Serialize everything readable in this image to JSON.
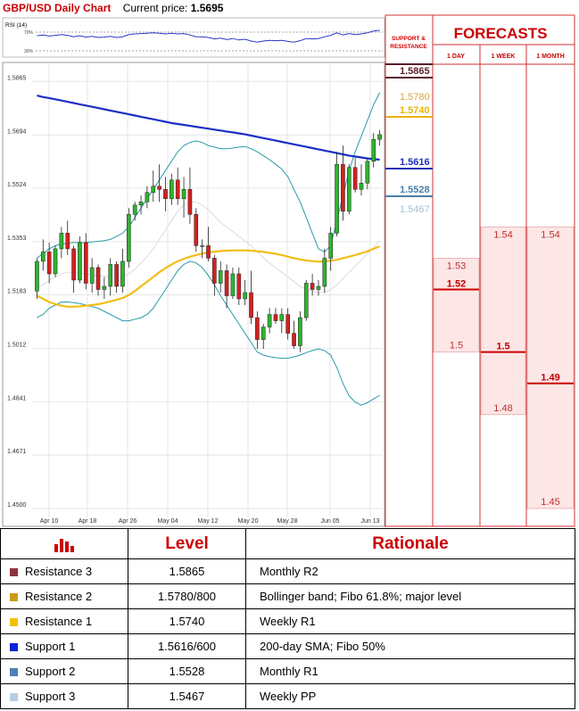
{
  "header": {
    "title": "GBP/USD Daily Chart",
    "price_label": "Current price:",
    "price_value": "1.5695"
  },
  "rsi_label": "RSI (14)",
  "rsi_levels": [
    "70%",
    "30%"
  ],
  "panel": {
    "sr_title_1": "SUPPORT &",
    "sr_title_2": "RESISTANCE",
    "forecasts_title": "FORECASTS",
    "col_1day": "1 DAY",
    "col_1week": "1 WEEK",
    "col_1month": "1 MONTH"
  },
  "colors": {
    "up": "#2db52d",
    "down": "#d42020",
    "sma200": "#1b2fc4",
    "sma_short": "#f2be16",
    "bands": "#2a9aaa",
    "forecast_fill": "#fde6e6",
    "forecast_line": "#cc0000"
  },
  "chart_data": [
    {
      "type": "candlestick",
      "title": "GBP/USD Daily Chart",
      "ylim": [
        1.446,
        1.592
      ],
      "y_ticks": [
        "1.5865",
        "1.5694",
        "1.5524",
        "1.5353",
        "1.5183",
        "1.5012",
        "1.4841",
        "1.4671",
        "1.4500"
      ],
      "x_ticks": [
        "Apr 10",
        "Apr 18",
        "Apr 26",
        "May 04",
        "May 12",
        "May 20",
        "May 28",
        "Jun 05",
        "Jun 13"
      ],
      "candles": [
        {
          "o": 1.5195,
          "h": 1.53,
          "l": 1.517,
          "c": 1.529
        },
        {
          "o": 1.529,
          "h": 1.536,
          "l": 1.526,
          "c": 1.532
        },
        {
          "o": 1.532,
          "h": 1.535,
          "l": 1.522,
          "c": 1.525
        },
        {
          "o": 1.525,
          "h": 1.534,
          "l": 1.524,
          "c": 1.533
        },
        {
          "o": 1.533,
          "h": 1.54,
          "l": 1.53,
          "c": 1.538
        },
        {
          "o": 1.538,
          "h": 1.542,
          "l": 1.531,
          "c": 1.533
        },
        {
          "o": 1.533,
          "h": 1.534,
          "l": 1.519,
          "c": 1.523
        },
        {
          "o": 1.523,
          "h": 1.537,
          "l": 1.522,
          "c": 1.535
        },
        {
          "o": 1.535,
          "h": 1.538,
          "l": 1.52,
          "c": 1.522
        },
        {
          "o": 1.522,
          "h": 1.53,
          "l": 1.519,
          "c": 1.527
        },
        {
          "o": 1.527,
          "h": 1.528,
          "l": 1.518,
          "c": 1.52
        },
        {
          "o": 1.52,
          "h": 1.524,
          "l": 1.517,
          "c": 1.521
        },
        {
          "o": 1.521,
          "h": 1.53,
          "l": 1.518,
          "c": 1.528
        },
        {
          "o": 1.528,
          "h": 1.529,
          "l": 1.519,
          "c": 1.521
        },
        {
          "o": 1.521,
          "h": 1.533,
          "l": 1.519,
          "c": 1.529
        },
        {
          "o": 1.529,
          "h": 1.546,
          "l": 1.527,
          "c": 1.544
        },
        {
          "o": 1.544,
          "h": 1.548,
          "l": 1.542,
          "c": 1.547
        },
        {
          "o": 1.547,
          "h": 1.55,
          "l": 1.544,
          "c": 1.548
        },
        {
          "o": 1.548,
          "h": 1.553,
          "l": 1.546,
          "c": 1.551
        },
        {
          "o": 1.551,
          "h": 1.558,
          "l": 1.548,
          "c": 1.553
        },
        {
          "o": 1.553,
          "h": 1.56,
          "l": 1.548,
          "c": 1.552
        },
        {
          "o": 1.552,
          "h": 1.556,
          "l": 1.545,
          "c": 1.549
        },
        {
          "o": 1.549,
          "h": 1.557,
          "l": 1.547,
          "c": 1.555
        },
        {
          "o": 1.555,
          "h": 1.559,
          "l": 1.547,
          "c": 1.549
        },
        {
          "o": 1.549,
          "h": 1.556,
          "l": 1.543,
          "c": 1.552
        },
        {
          "o": 1.552,
          "h": 1.559,
          "l": 1.541,
          "c": 1.544
        },
        {
          "o": 1.544,
          "h": 1.546,
          "l": 1.532,
          "c": 1.534
        },
        {
          "o": 1.534,
          "h": 1.536,
          "l": 1.53,
          "c": 1.534
        },
        {
          "o": 1.534,
          "h": 1.54,
          "l": 1.529,
          "c": 1.53
        },
        {
          "o": 1.53,
          "h": 1.531,
          "l": 1.518,
          "c": 1.522
        },
        {
          "o": 1.522,
          "h": 1.529,
          "l": 1.519,
          "c": 1.526
        },
        {
          "o": 1.526,
          "h": 1.528,
          "l": 1.514,
          "c": 1.518
        },
        {
          "o": 1.518,
          "h": 1.527,
          "l": 1.517,
          "c": 1.525
        },
        {
          "o": 1.525,
          "h": 1.527,
          "l": 1.515,
          "c": 1.517
        },
        {
          "o": 1.517,
          "h": 1.523,
          "l": 1.515,
          "c": 1.519
        },
        {
          "o": 1.519,
          "h": 1.526,
          "l": 1.509,
          "c": 1.511
        },
        {
          "o": 1.511,
          "h": 1.513,
          "l": 1.501,
          "c": 1.504
        },
        {
          "o": 1.504,
          "h": 1.509,
          "l": 1.501,
          "c": 1.508
        },
        {
          "o": 1.508,
          "h": 1.514,
          "l": 1.506,
          "c": 1.512
        },
        {
          "o": 1.512,
          "h": 1.514,
          "l": 1.509,
          "c": 1.51
        },
        {
          "o": 1.51,
          "h": 1.514,
          "l": 1.506,
          "c": 1.512
        },
        {
          "o": 1.512,
          "h": 1.514,
          "l": 1.504,
          "c": 1.506
        },
        {
          "o": 1.506,
          "h": 1.51,
          "l": 1.501,
          "c": 1.502
        },
        {
          "o": 1.502,
          "h": 1.513,
          "l": 1.5,
          "c": 1.511
        },
        {
          "o": 1.511,
          "h": 1.523,
          "l": 1.51,
          "c": 1.522
        },
        {
          "o": 1.522,
          "h": 1.525,
          "l": 1.518,
          "c": 1.52
        },
        {
          "o": 1.52,
          "h": 1.523,
          "l": 1.518,
          "c": 1.521
        },
        {
          "o": 1.521,
          "h": 1.533,
          "l": 1.519,
          "c": 1.53
        },
        {
          "o": 1.53,
          "h": 1.54,
          "l": 1.526,
          "c": 1.538
        },
        {
          "o": 1.538,
          "h": 1.564,
          "l": 1.537,
          "c": 1.56
        },
        {
          "o": 1.56,
          "h": 1.566,
          "l": 1.542,
          "c": 1.545
        },
        {
          "o": 1.545,
          "h": 1.56,
          "l": 1.544,
          "c": 1.559
        },
        {
          "o": 1.559,
          "h": 1.562,
          "l": 1.551,
          "c": 1.552
        },
        {
          "o": 1.552,
          "h": 1.56,
          "l": 1.55,
          "c": 1.554
        },
        {
          "o": 1.554,
          "h": 1.562,
          "l": 1.552,
          "c": 1.561
        },
        {
          "o": 1.561,
          "h": 1.57,
          "l": 1.559,
          "c": 1.568
        },
        {
          "o": 1.568,
          "h": 1.571,
          "l": 1.566,
          "c": 1.5695
        }
      ],
      "sma200": [
        1.582,
        1.5815,
        1.5812,
        1.5808,
        1.5804,
        1.58,
        1.5796,
        1.5792,
        1.5788,
        1.5784,
        1.578,
        1.5776,
        1.5772,
        1.5768,
        1.5764,
        1.576,
        1.5756,
        1.5752,
        1.5748,
        1.5744,
        1.574,
        1.5736,
        1.5732,
        1.5729,
        1.5726,
        1.5723,
        1.572,
        1.5717,
        1.5714,
        1.5711,
        1.5708,
        1.5705,
        1.5702,
        1.5699,
        1.5696,
        1.5692,
        1.5688,
        1.5684,
        1.568,
        1.5676,
        1.5672,
        1.5668,
        1.5664,
        1.566,
        1.5656,
        1.5652,
        1.5648,
        1.5644,
        1.564,
        1.5636,
        1.5632,
        1.5628,
        1.5625,
        1.5622,
        1.5619,
        1.5617,
        1.5615
      ],
      "sma_short": [
        1.518,
        1.517,
        1.516,
        1.5153,
        1.5148,
        1.5145,
        1.5145,
        1.5146,
        1.5148,
        1.515,
        1.5153,
        1.5157,
        1.5162,
        1.5167,
        1.5173,
        1.5182,
        1.5195,
        1.521,
        1.5225,
        1.524,
        1.5255,
        1.5268,
        1.528,
        1.529,
        1.5298,
        1.5305,
        1.531,
        1.5315,
        1.5318,
        1.5321,
        1.5323,
        1.5324,
        1.5325,
        1.5325,
        1.5325,
        1.5324,
        1.5322,
        1.532,
        1.5317,
        1.5314,
        1.531,
        1.5305,
        1.53,
        1.5296,
        1.5293,
        1.529,
        1.5289,
        1.529,
        1.5292,
        1.5295,
        1.53,
        1.5305,
        1.531,
        1.5316,
        1.5322,
        1.533,
        1.5338
      ],
      "boll_upper": [
        1.53,
        1.5315,
        1.533,
        1.534,
        1.5345,
        1.5348,
        1.535,
        1.535,
        1.535,
        1.5352,
        1.5354,
        1.5356,
        1.536,
        1.537,
        1.538,
        1.54,
        1.543,
        1.546,
        1.549,
        1.552,
        1.555,
        1.558,
        1.561,
        1.564,
        1.566,
        1.567,
        1.5675,
        1.567,
        1.566,
        1.5655,
        1.565,
        1.565,
        1.5652,
        1.5655,
        1.5657,
        1.565,
        1.564,
        1.5628,
        1.5615,
        1.56,
        1.5585,
        1.556,
        1.552,
        1.548,
        1.543,
        1.538,
        1.533,
        1.532,
        1.534,
        1.542,
        1.55,
        1.558,
        1.564,
        1.569,
        1.574,
        1.579,
        1.583
      ],
      "boll_lower": [
        1.511,
        1.512,
        1.514,
        1.515,
        1.516,
        1.516,
        1.5158,
        1.5155,
        1.515,
        1.5145,
        1.514,
        1.513,
        1.512,
        1.511,
        1.51,
        1.51,
        1.5105,
        1.511,
        1.512,
        1.514,
        1.517,
        1.52,
        1.523,
        1.526,
        1.528,
        1.529,
        1.5285,
        1.527,
        1.5245,
        1.5215,
        1.518,
        1.515,
        1.512,
        1.509,
        1.506,
        1.503,
        1.5,
        1.499,
        1.4985,
        1.4982,
        1.498,
        1.498,
        1.4985,
        1.499,
        1.4998,
        1.5005,
        1.501,
        1.5005,
        1.499,
        1.495,
        1.49,
        1.486,
        1.484,
        1.483,
        1.4838,
        1.485,
        1.4862
      ],
      "boll_mid": [
        1.5205,
        1.5215,
        1.523,
        1.524,
        1.525,
        1.5255,
        1.5255,
        1.5253,
        1.525,
        1.5248,
        1.5245,
        1.5243,
        1.524,
        1.524,
        1.524,
        1.525,
        1.5265,
        1.5285,
        1.5305,
        1.533,
        1.536,
        1.539,
        1.542,
        1.545,
        1.547,
        1.548,
        1.548,
        1.547,
        1.5455,
        1.5435,
        1.5415,
        1.54,
        1.5385,
        1.537,
        1.5355,
        1.534,
        1.532,
        1.53,
        1.5285,
        1.527,
        1.5255,
        1.524,
        1.5225,
        1.521,
        1.52,
        1.5195,
        1.519,
        1.519,
        1.52,
        1.5215,
        1.5235,
        1.5255,
        1.5275,
        1.5295,
        1.5315,
        1.5335,
        1.5355
      ]
    },
    {
      "type": "line",
      "title": "RSI (14)",
      "ylim": [
        0,
        100
      ],
      "values": [
        55,
        57,
        54,
        56,
        58,
        56,
        52,
        55,
        51,
        53,
        50,
        51,
        53,
        50,
        52,
        58,
        60,
        61,
        62,
        63,
        62,
        60,
        62,
        60,
        61,
        57,
        52,
        52,
        50,
        46,
        48,
        44,
        47,
        43,
        45,
        40,
        37,
        40,
        42,
        41,
        42,
        39,
        37,
        41,
        47,
        46,
        47,
        52,
        56,
        63,
        57,
        61,
        58,
        60,
        63,
        68,
        70
      ]
    }
  ],
  "sr_levels": [
    {
      "label": "1.5865",
      "value": 1.5865,
      "color": "#5b1f2e",
      "box": true
    },
    {
      "label": "1.5780",
      "value": 1.578,
      "color": "#d9a441",
      "box": false
    },
    {
      "label": "1.5740",
      "value": 1.574,
      "color": "#e8b30a",
      "box": true
    },
    {
      "label": "1.5616",
      "value": 1.5616,
      "color": "#1d2fb8",
      "box": true
    },
    {
      "label": "1.5528",
      "value": 1.5528,
      "color": "#4a7fa8",
      "box": true
    },
    {
      "label": "1.5467",
      "value": 1.5467,
      "color": "#a3c3d8",
      "box": false
    }
  ],
  "forecasts": {
    "day": {
      "high": 1.53,
      "mid": 1.52,
      "low": 1.5,
      "high_label": "1.53",
      "mid_label": "1.52",
      "low_label": "1.5"
    },
    "week": {
      "high": 1.54,
      "mid": 1.5,
      "low": 1.48,
      "high_label": "1.54",
      "mid_label": "1.5",
      "low_label": "1.48"
    },
    "month": {
      "high": 1.54,
      "mid": 1.49,
      "low": 1.45,
      "high_label": "1.54",
      "mid_label": "1.49",
      "low_label": "1.45"
    }
  },
  "table": {
    "level_header": "Level",
    "rationale_header": "Rationale",
    "rows": [
      {
        "name": "Resistance 3",
        "level": "1.5865",
        "rationale": "Monthly R2",
        "color": "#8c3340"
      },
      {
        "name": "Resistance 2",
        "level": "1.5780/800",
        "rationale": "Bollinger band; Fibo 61.8%; major level",
        "color": "#c99a1c"
      },
      {
        "name": "Resistance 1",
        "level": "1.5740",
        "rationale": "Weekly R1",
        "color": "#f2c200"
      },
      {
        "name": "Support 1",
        "level": "1.5616/600",
        "rationale": "200-day SMA; Fibo 50%",
        "color": "#1020d8"
      },
      {
        "name": "Support 2",
        "level": "1.5528",
        "rationale": "Monthly R1",
        "color": "#4f7fb5"
      },
      {
        "name": "Support 3",
        "level": "1.5467",
        "rationale": "Weekly PP",
        "color": "#b8cde4"
      }
    ]
  }
}
